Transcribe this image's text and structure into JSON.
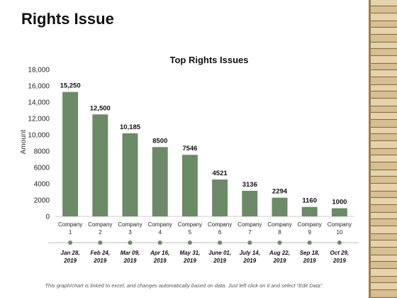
{
  "slide": {
    "title": "Rights Issue",
    "footer": "This graph/chart is linked to excel, and changes automatically based on data. Just left click on it and select “Edit Data”."
  },
  "colors": {
    "bar": "#6b8a66",
    "timeline_dot": "#6b8a66",
    "timeline_line": "#9aa89a",
    "text": "#222222",
    "coin_light": "#e6d3ad",
    "coin_dark": "#8f6f3e"
  },
  "chart_data": {
    "type": "bar",
    "title": "Top Rights Issues",
    "xlabel": "",
    "ylabel": "Amount",
    "ylim": [
      0,
      18000
    ],
    "yticks": [
      "0",
      "2000",
      "4000",
      "6000",
      "8000",
      "10,000",
      "12,000",
      "14,000",
      "16,000",
      "18,000"
    ],
    "grid": false,
    "categories": [
      [
        "Company",
        "1"
      ],
      [
        "Company",
        "2"
      ],
      [
        "Company",
        "3"
      ],
      [
        "Company",
        "4"
      ],
      [
        "Company",
        "5"
      ],
      [
        "Company",
        "6"
      ],
      [
        "Company",
        "7"
      ],
      [
        "Company",
        "8"
      ],
      [
        "Company",
        "9"
      ],
      [
        "Company",
        "10"
      ]
    ],
    "values": [
      15250,
      12500,
      10185,
      8500,
      7546,
      4521,
      3136,
      2294,
      1160,
      1000
    ],
    "value_labels": [
      "15,250",
      "12,500",
      "10,185",
      "8500",
      "7546",
      "4521",
      "3136",
      "2294",
      "1160",
      "1000"
    ],
    "dates": [
      [
        "Jan 28,",
        "2019"
      ],
      [
        "Feb 24,",
        "2019"
      ],
      [
        "Mar 09,",
        "2019"
      ],
      [
        "Apr 16,",
        "2019"
      ],
      [
        "May 31,",
        "2019"
      ],
      [
        "June 01,",
        "2019"
      ],
      [
        "July 14,",
        "2019"
      ],
      [
        "Aug 22,",
        "2019"
      ],
      [
        "Sep 18,",
        "2019"
      ],
      [
        "Oct 29,",
        "2019"
      ]
    ]
  }
}
